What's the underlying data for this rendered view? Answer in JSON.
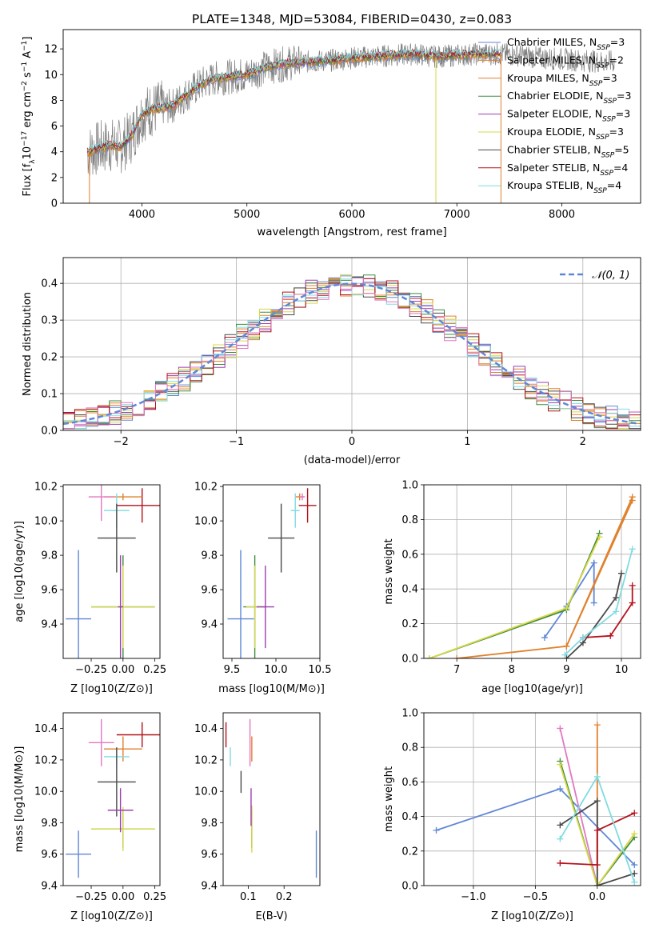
{
  "figure": {
    "title": "PLATE=1348, MJD=53084, FIBERID=0430, z=0.083"
  },
  "colors": {
    "ChabrierMILES": "#5f87d6",
    "SalpeterMILES": "#e0812d",
    "KroupaMILES": "#e0812d",
    "ChabrierELODIE": "#3d8a3d",
    "SalpeterELODIE": "#9b3fb0",
    "KroupaELODIE": "#d8d84a",
    "ChabrierSTELIB": "#4a4a4a",
    "SalpeterSTELIB": "#b5121b",
    "KroupaSTELIB": "#80dbe0",
    "pink": "#e377c2",
    "lightgreen": "#9acd32",
    "gray": "#7f7f7f"
  },
  "chart_data": [
    {
      "type": "line",
      "panel": "spectrum",
      "title": "PLATE=1348, MJD=53084, FIBERID=0430, z=0.083",
      "xlabel": "wavelength [Angstrom, rest frame]",
      "ylabel": "Flux [f_λ10^-17 erg cm^-2 s^-1 A^-1]",
      "xlim": [
        3250,
        8750
      ],
      "ylim": [
        0,
        13.5
      ],
      "xticks": [
        4000,
        5000,
        6000,
        7000,
        8000
      ],
      "yticks": [
        0,
        2,
        4,
        6,
        8,
        10,
        12
      ],
      "legend_position": "right",
      "legend": [
        {
          "label": "Chabrier MILES, N",
          "sub": "SSP",
          "tail": "=3",
          "color": "#5f87d6"
        },
        {
          "label": "Salpeter MILES, N",
          "sub": "SSP",
          "tail": "=2",
          "color": "#e0812d"
        },
        {
          "label": "Kroupa MILES, N",
          "sub": "SSP",
          "tail": "=3",
          "color": "#e0812d"
        },
        {
          "label": "Chabrier ELODIE, N",
          "sub": "SSP",
          "tail": "=3",
          "color": "#3d8a3d"
        },
        {
          "label": "Salpeter ELODIE, N",
          "sub": "SSP",
          "tail": "=3",
          "color": "#9b3fb0"
        },
        {
          "label": "Kroupa ELODIE, N",
          "sub": "SSP",
          "tail": "=3",
          "color": "#d8d84a"
        },
        {
          "label": "Chabrier STELIB, N",
          "sub": "SSP",
          "tail": "=5",
          "color": "#4a4a4a"
        },
        {
          "label": "Salpeter STELIB, N",
          "sub": "SSP",
          "tail": "=4",
          "color": "#b5121b"
        },
        {
          "label": "Kroupa STELIB, N",
          "sub": "SSP",
          "tail": "=4",
          "color": "#80dbe0"
        }
      ],
      "continuum": [
        [
          3500,
          4.0
        ],
        [
          3600,
          4.3
        ],
        [
          3700,
          4.5
        ],
        [
          3800,
          4.4
        ],
        [
          3900,
          5.2
        ],
        [
          4000,
          6.9
        ],
        [
          4100,
          7.3
        ],
        [
          4200,
          7.4
        ],
        [
          4300,
          7.6
        ],
        [
          4400,
          8.3
        ],
        [
          4500,
          8.9
        ],
        [
          4600,
          9.4
        ],
        [
          4700,
          9.7
        ],
        [
          4800,
          9.8
        ],
        [
          4900,
          9.9
        ],
        [
          5000,
          10.0
        ],
        [
          5200,
          10.6
        ],
        [
          5400,
          10.9
        ],
        [
          5600,
          11.0
        ],
        [
          5800,
          11.1
        ],
        [
          6000,
          11.3
        ],
        [
          6200,
          11.4
        ],
        [
          6400,
          11.5
        ],
        [
          6600,
          11.6
        ],
        [
          6800,
          11.4
        ],
        [
          7000,
          11.5
        ],
        [
          7200,
          11.6
        ],
        [
          7400,
          11.6
        ],
        [
          7600,
          11.5
        ],
        [
          7800,
          11.3
        ],
        [
          8000,
          11.2
        ],
        [
          8200,
          11.1
        ],
        [
          8400,
          11.0
        ]
      ],
      "data_wavelength_range": [
        3480,
        8500
      ],
      "model_wavelength_range": [
        3480,
        7420
      ],
      "edge_drop_wavelengths": [
        3500,
        6800,
        7420
      ]
    },
    {
      "type": "bar",
      "panel": "residual-histogram",
      "xlabel": "(data-model)/error",
      "ylabel": "Normed distribution",
      "xlim": [
        -2.5,
        2.5
      ],
      "ylim": [
        0,
        0.47
      ],
      "xticks": [
        -2,
        -1,
        0,
        1,
        2
      ],
      "xticklabels": [
        "−2",
        "−1",
        "0",
        "1",
        "2"
      ],
      "yticks": [
        0.0,
        0.1,
        0.2,
        0.3,
        0.4
      ],
      "yticklabels": [
        "0.0",
        "0.1",
        "0.2",
        "0.3",
        "0.4"
      ],
      "legend_position": "top-right",
      "legend": [
        {
          "label": "𝒩(0, 1)",
          "color": "#5f87d6",
          "style": "dashed"
        }
      ],
      "gaussian": {
        "mean": 0,
        "sigma": 1
      },
      "bin_width": 0.1
    },
    {
      "type": "scatter",
      "panel": "age-vs-Z",
      "xlabel": "Z [log10(Z/Z⊙)]",
      "ylabel": "age [log10(age/yr)]",
      "xlim": [
        -0.47,
        0.29
      ],
      "ylim": [
        9.2,
        10.21
      ],
      "xticks": [
        -0.25,
        0.0,
        0.25
      ],
      "xticklabels": [
        "−0.25",
        "0.00",
        "0.25"
      ],
      "yticks": [
        9.4,
        9.6,
        9.8,
        10.0,
        10.2
      ],
      "yticklabels": [
        "9.4",
        "9.6",
        "9.8",
        "10.0",
        "10.2"
      ],
      "points": [
        {
          "x": -0.35,
          "y": 9.43,
          "xerr": 0.1,
          "yerr": 0.4,
          "color": "#5f87d6"
        },
        {
          "x": 0.15,
          "y": 10.09,
          "xerr": 0.2,
          "yerr": 0.1,
          "color": "#b5121b"
        },
        {
          "x": 0.0,
          "y": 10.14,
          "xerr": 0.15,
          "yerr": 0.02,
          "color": "#e0812d"
        },
        {
          "x": -0.17,
          "y": 10.14,
          "xerr": 0.1,
          "yerr": 0.14,
          "color": "#e377c2"
        },
        {
          "x": -0.05,
          "y": 10.06,
          "xerr": 0.1,
          "yerr": 0.1,
          "color": "#80dbe0"
        },
        {
          "x": -0.05,
          "y": 9.9,
          "xerr": 0.15,
          "yerr": 0.2,
          "color": "#4a4a4a"
        },
        {
          "x": 0.0,
          "y": 9.5,
          "xerr": 0.25,
          "yerr": 0.3,
          "color": "#3d8a3d"
        },
        {
          "x": 0.0,
          "y": 9.5,
          "xerr": 0.25,
          "yerr": 0.24,
          "color": "#d8d84a"
        },
        {
          "x": -0.02,
          "y": 9.5,
          "xerr": 0.02,
          "yerr": 0.3,
          "color": "#9b3fb0"
        }
      ]
    },
    {
      "type": "scatter",
      "panel": "age-vs-mass",
      "xlabel": "mass [log10(M/M⊙)]",
      "xlim": [
        9.4,
        10.5
      ],
      "ylim": [
        9.2,
        10.21
      ],
      "xticks": [
        9.5,
        10.0,
        10.5
      ],
      "xticklabels": [
        "9.5",
        "10.0",
        "10.5"
      ],
      "yticks": [
        9.4,
        9.6,
        9.8,
        10.0,
        10.2
      ],
      "yticklabels": [
        "9.4",
        "9.6",
        "9.8",
        "10.0",
        "10.2"
      ],
      "points": [
        {
          "x": 9.6,
          "y": 9.43,
          "xerr": 0.15,
          "yerr": 0.4,
          "color": "#5f87d6"
        },
        {
          "x": 10.36,
          "y": 10.09,
          "xerr": 0.1,
          "yerr": 0.1,
          "color": "#b5121b"
        },
        {
          "x": 10.27,
          "y": 10.14,
          "xerr": 0.05,
          "yerr": 0.02,
          "color": "#e0812d"
        },
        {
          "x": 10.3,
          "y": 10.14,
          "xerr": 0.03,
          "yerr": 0.02,
          "color": "#e377c2"
        },
        {
          "x": 10.22,
          "y": 10.06,
          "xerr": 0.05,
          "yerr": 0.1,
          "color": "#80dbe0"
        },
        {
          "x": 10.06,
          "y": 9.9,
          "xerr": 0.15,
          "yerr": 0.2,
          "color": "#4a4a4a"
        },
        {
          "x": 9.76,
          "y": 9.5,
          "xerr": 0.13,
          "yerr": 0.3,
          "color": "#3d8a3d"
        },
        {
          "x": 9.76,
          "y": 9.5,
          "xerr": 0.1,
          "yerr": 0.24,
          "color": "#d8d84a"
        },
        {
          "x": 9.88,
          "y": 9.5,
          "xerr": 0.1,
          "yerr": 0.24,
          "color": "#9b3fb0"
        }
      ]
    },
    {
      "type": "line",
      "panel": "mass-weight-vs-age",
      "xlabel": "age [log10(age/yr)]",
      "ylabel": "mass weight",
      "xlim": [
        6.4,
        10.35
      ],
      "ylim": [
        0,
        1.0
      ],
      "xticks": [
        7,
        8,
        9,
        10
      ],
      "yticks": [
        0.0,
        0.2,
        0.4,
        0.6,
        0.8,
        1.0
      ],
      "yticklabels": [
        "0.0",
        "0.2",
        "0.4",
        "0.6",
        "0.8",
        "1.0"
      ],
      "grid": true,
      "series": [
        {
          "color": "#5f87d6",
          "points": [
            [
              8.6,
              0.12
            ],
            [
              9.0,
              0.3
            ],
            [
              9.5,
              0.55
            ],
            [
              9.5,
              0.32
            ]
          ]
        },
        {
          "color": "#3d8a3d",
          "points": [
            [
              6.5,
              0.0
            ],
            [
              9.0,
              0.28
            ],
            [
              9.6,
              0.72
            ]
          ]
        },
        {
          "color": "#d8d84a",
          "points": [
            [
              6.5,
              0.0
            ],
            [
              9.0,
              0.29
            ],
            [
              9.6,
              0.7
            ]
          ]
        },
        {
          "color": "#e0812d",
          "points": [
            [
              7.0,
              0.0
            ],
            [
              9.0,
              0.07
            ],
            [
              10.2,
              0.93
            ]
          ]
        },
        {
          "color": "#e0812d",
          "points": [
            [
              9.0,
              0.07
            ],
            [
              10.2,
              0.91
            ]
          ]
        },
        {
          "color": "#4a4a4a",
          "points": [
            [
              9.0,
              0.0
            ],
            [
              9.3,
              0.09
            ],
            [
              9.9,
              0.35
            ],
            [
              10.0,
              0.49
            ]
          ]
        },
        {
          "color": "#b5121b",
          "points": [
            [
              9.3,
              0.12
            ],
            [
              9.8,
              0.13
            ],
            [
              10.2,
              0.32
            ],
            [
              10.2,
              0.42
            ]
          ]
        },
        {
          "color": "#80dbe0",
          "points": [
            [
              8.97,
              0.02
            ],
            [
              9.3,
              0.12
            ],
            [
              9.9,
              0.27
            ],
            [
              10.2,
              0.63
            ]
          ]
        }
      ]
    },
    {
      "type": "scatter",
      "panel": "mass-vs-Z",
      "xlabel": "Z [log10(Z/Z⊙)]",
      "ylabel": "mass [log10(M/M⊙)]",
      "xlim": [
        -0.47,
        0.29
      ],
      "ylim": [
        9.4,
        10.5
      ],
      "xticks": [
        -0.25,
        0.0,
        0.25
      ],
      "xticklabels": [
        "−0.25",
        "0.00",
        "0.25"
      ],
      "yticks": [
        9.4,
        9.6,
        9.8,
        10.0,
        10.2,
        10.4
      ],
      "yticklabels": [
        "9.4",
        "9.6",
        "9.8",
        "10.0",
        "10.2",
        "10.4"
      ],
      "points": [
        {
          "x": -0.35,
          "y": 9.6,
          "xerr": 0.1,
          "yerr": 0.15,
          "color": "#5f87d6"
        },
        {
          "x": 0.15,
          "y": 10.36,
          "xerr": 0.2,
          "yerr": 0.08,
          "color": "#b5121b"
        },
        {
          "x": 0.0,
          "y": 10.27,
          "xerr": 0.15,
          "yerr": 0.08,
          "color": "#e0812d"
        },
        {
          "x": -0.17,
          "y": 10.31,
          "xerr": 0.1,
          "yerr": 0.15,
          "color": "#e377c2"
        },
        {
          "x": -0.05,
          "y": 10.22,
          "xerr": 0.1,
          "yerr": 0.05,
          "color": "#80dbe0"
        },
        {
          "x": -0.05,
          "y": 10.06,
          "xerr": 0.15,
          "yerr": 0.22,
          "color": "#4a4a4a"
        },
        {
          "x": 0.0,
          "y": 9.76,
          "xerr": 0.25,
          "yerr": 0.12,
          "color": "#3d8a3d"
        },
        {
          "x": 0.0,
          "y": 9.76,
          "xerr": 0.25,
          "yerr": 0.14,
          "color": "#d8d84a"
        },
        {
          "x": -0.02,
          "y": 9.88,
          "xerr": 0.1,
          "yerr": 0.14,
          "color": "#9b3fb0"
        }
      ]
    },
    {
      "type": "scatter",
      "panel": "mass-vs-EBV",
      "xlabel": "E(B-V)",
      "xlim": [
        0.03,
        0.3
      ],
      "ylim": [
        9.4,
        10.5
      ],
      "xticks": [
        0.1,
        0.2
      ],
      "xticklabels": [
        "0.1",
        "0.2"
      ],
      "yticks": [
        9.4,
        9.6,
        9.8,
        10.0,
        10.2,
        10.4
      ],
      "yticklabels": [
        "9.4",
        "9.6",
        "9.8",
        "10.0",
        "10.2",
        "10.4"
      ],
      "points": [
        {
          "x": 0.29,
          "y": 9.6,
          "xerr": 0,
          "yerr": 0.15,
          "color": "#5f87d6"
        },
        {
          "x": 0.038,
          "y": 10.36,
          "xerr": 0,
          "yerr": 0.08,
          "color": "#b5121b"
        },
        {
          "x": 0.11,
          "y": 10.27,
          "xerr": 0,
          "yerr": 0.08,
          "color": "#e0812d"
        },
        {
          "x": 0.105,
          "y": 10.31,
          "xerr": 0,
          "yerr": 0.15,
          "color": "#e377c2"
        },
        {
          "x": 0.05,
          "y": 10.22,
          "xerr": 0,
          "yerr": 0.06,
          "color": "#80dbe0"
        },
        {
          "x": 0.08,
          "y": 10.06,
          "xerr": 0,
          "yerr": 0.07,
          "color": "#4a4a4a"
        },
        {
          "x": 0.11,
          "y": 9.76,
          "xerr": 0,
          "yerr": 0.12,
          "color": "#3d8a3d"
        },
        {
          "x": 0.11,
          "y": 9.76,
          "xerr": 0,
          "yerr": 0.15,
          "color": "#d8d84a"
        },
        {
          "x": 0.108,
          "y": 9.9,
          "xerr": 0,
          "yerr": 0.12,
          "color": "#9b3fb0"
        }
      ]
    },
    {
      "type": "line",
      "panel": "mass-weight-vs-Z",
      "xlabel": "Z [log10(Z/Z⊙)]",
      "ylabel": "mass weight",
      "xlim": [
        -1.4,
        0.35
      ],
      "ylim": [
        0,
        1.0
      ],
      "xticks": [
        -1.0,
        -0.5,
        0.0
      ],
      "xticklabels": [
        "−1.0",
        "−0.5",
        "0.0"
      ],
      "yticks": [
        0.0,
        0.2,
        0.4,
        0.6,
        0.8,
        1.0
      ],
      "yticklabels": [
        "0.0",
        "0.2",
        "0.4",
        "0.6",
        "0.8",
        "1.0"
      ],
      "grid": true,
      "series": [
        {
          "color": "#5f87d6",
          "points": [
            [
              -1.3,
              0.32
            ],
            [
              -0.3,
              0.56
            ],
            [
              0.3,
              0.12
            ]
          ]
        },
        {
          "color": "#e377c2",
          "points": [
            [
              -0.3,
              0.91
            ],
            [
              0.0,
              0.0
            ]
          ]
        },
        {
          "color": "#e0812d",
          "points": [
            [
              0.0,
              0.93
            ],
            [
              0.0,
              0.0
            ]
          ]
        },
        {
          "color": "#3d8a3d",
          "points": [
            [
              -0.3,
              0.72
            ],
            [
              0.0,
              0.0
            ],
            [
              0.3,
              0.28
            ]
          ]
        },
        {
          "color": "#d8d84a",
          "points": [
            [
              -0.3,
              0.7
            ],
            [
              0.0,
              0.0
            ],
            [
              0.3,
              0.3
            ]
          ]
        },
        {
          "color": "#4a4a4a",
          "points": [
            [
              -0.3,
              0.35
            ],
            [
              0.0,
              0.49
            ],
            [
              0.0,
              0.0
            ],
            [
              0.3,
              0.07
            ]
          ]
        },
        {
          "color": "#b5121b",
          "points": [
            [
              -0.3,
              0.13
            ],
            [
              0.0,
              0.12
            ],
            [
              0.0,
              0.32
            ],
            [
              0.3,
              0.42
            ]
          ]
        },
        {
          "color": "#80dbe0",
          "points": [
            [
              -0.3,
              0.27
            ],
            [
              0.0,
              0.63
            ],
            [
              0.3,
              0.02
            ]
          ]
        }
      ]
    }
  ]
}
